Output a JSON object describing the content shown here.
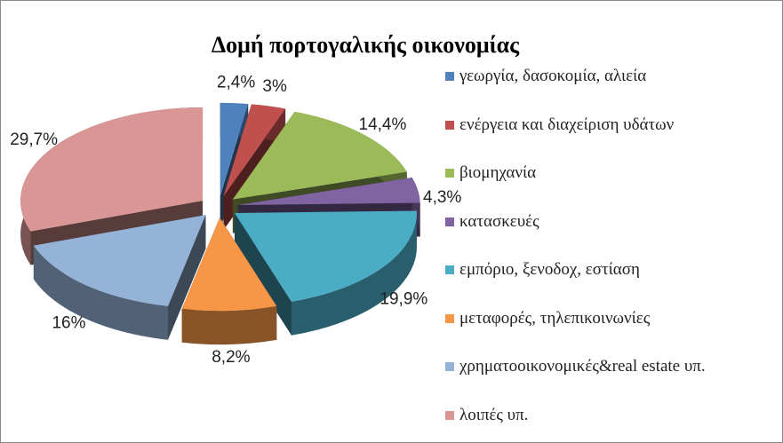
{
  "chart_data": {
    "type": "pie",
    "title": "Δομή πορτογαλικής οικονομίας",
    "categories": [
      "γεωργία, δασοκομία, αλιεία",
      "ενέργεια και διαχείριση υδάτων",
      "βιομηχανία",
      "κατασκευές",
      "εμπόριο, ξενοδοχ, εστίαση",
      "μεταφορές, τηλεπικοινωνίες",
      "χρηματοοικονομικές&real estate υπ.",
      "λοιπές υπ."
    ],
    "values": [
      2.4,
      3,
      14.4,
      4.3,
      19.9,
      8.2,
      16,
      29.7
    ],
    "value_labels": [
      "2,4%",
      "3%",
      "14,4%",
      "4,3%",
      "19,9%",
      "8,2%",
      "16%",
      "29,7%"
    ],
    "colors": [
      "#4f81bd",
      "#c0504d",
      "#9bbb59",
      "#8064a2",
      "#4bacc6",
      "#f79646",
      "#95b3d7",
      "#d99694"
    ],
    "legend": "right"
  }
}
